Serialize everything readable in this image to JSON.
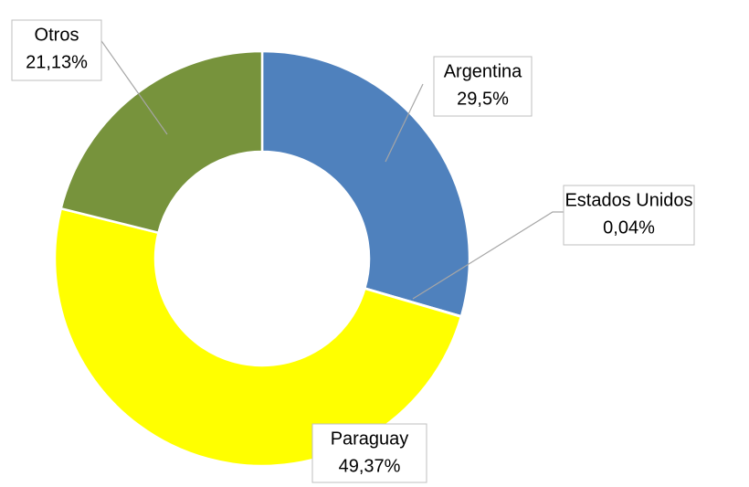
{
  "chart_data": {
    "type": "donut",
    "categories": [
      "Argentina",
      "Estados Unidos",
      "Paraguay",
      "Otros"
    ],
    "values": [
      29.5,
      0.04,
      49.37,
      21.13
    ],
    "value_labels": [
      "29,5%",
      "0,04%",
      "49,37%",
      "21,13%"
    ],
    "colors": [
      "#4f81bd",
      "#c0504d",
      "#ffff00",
      "#77933c"
    ]
  }
}
